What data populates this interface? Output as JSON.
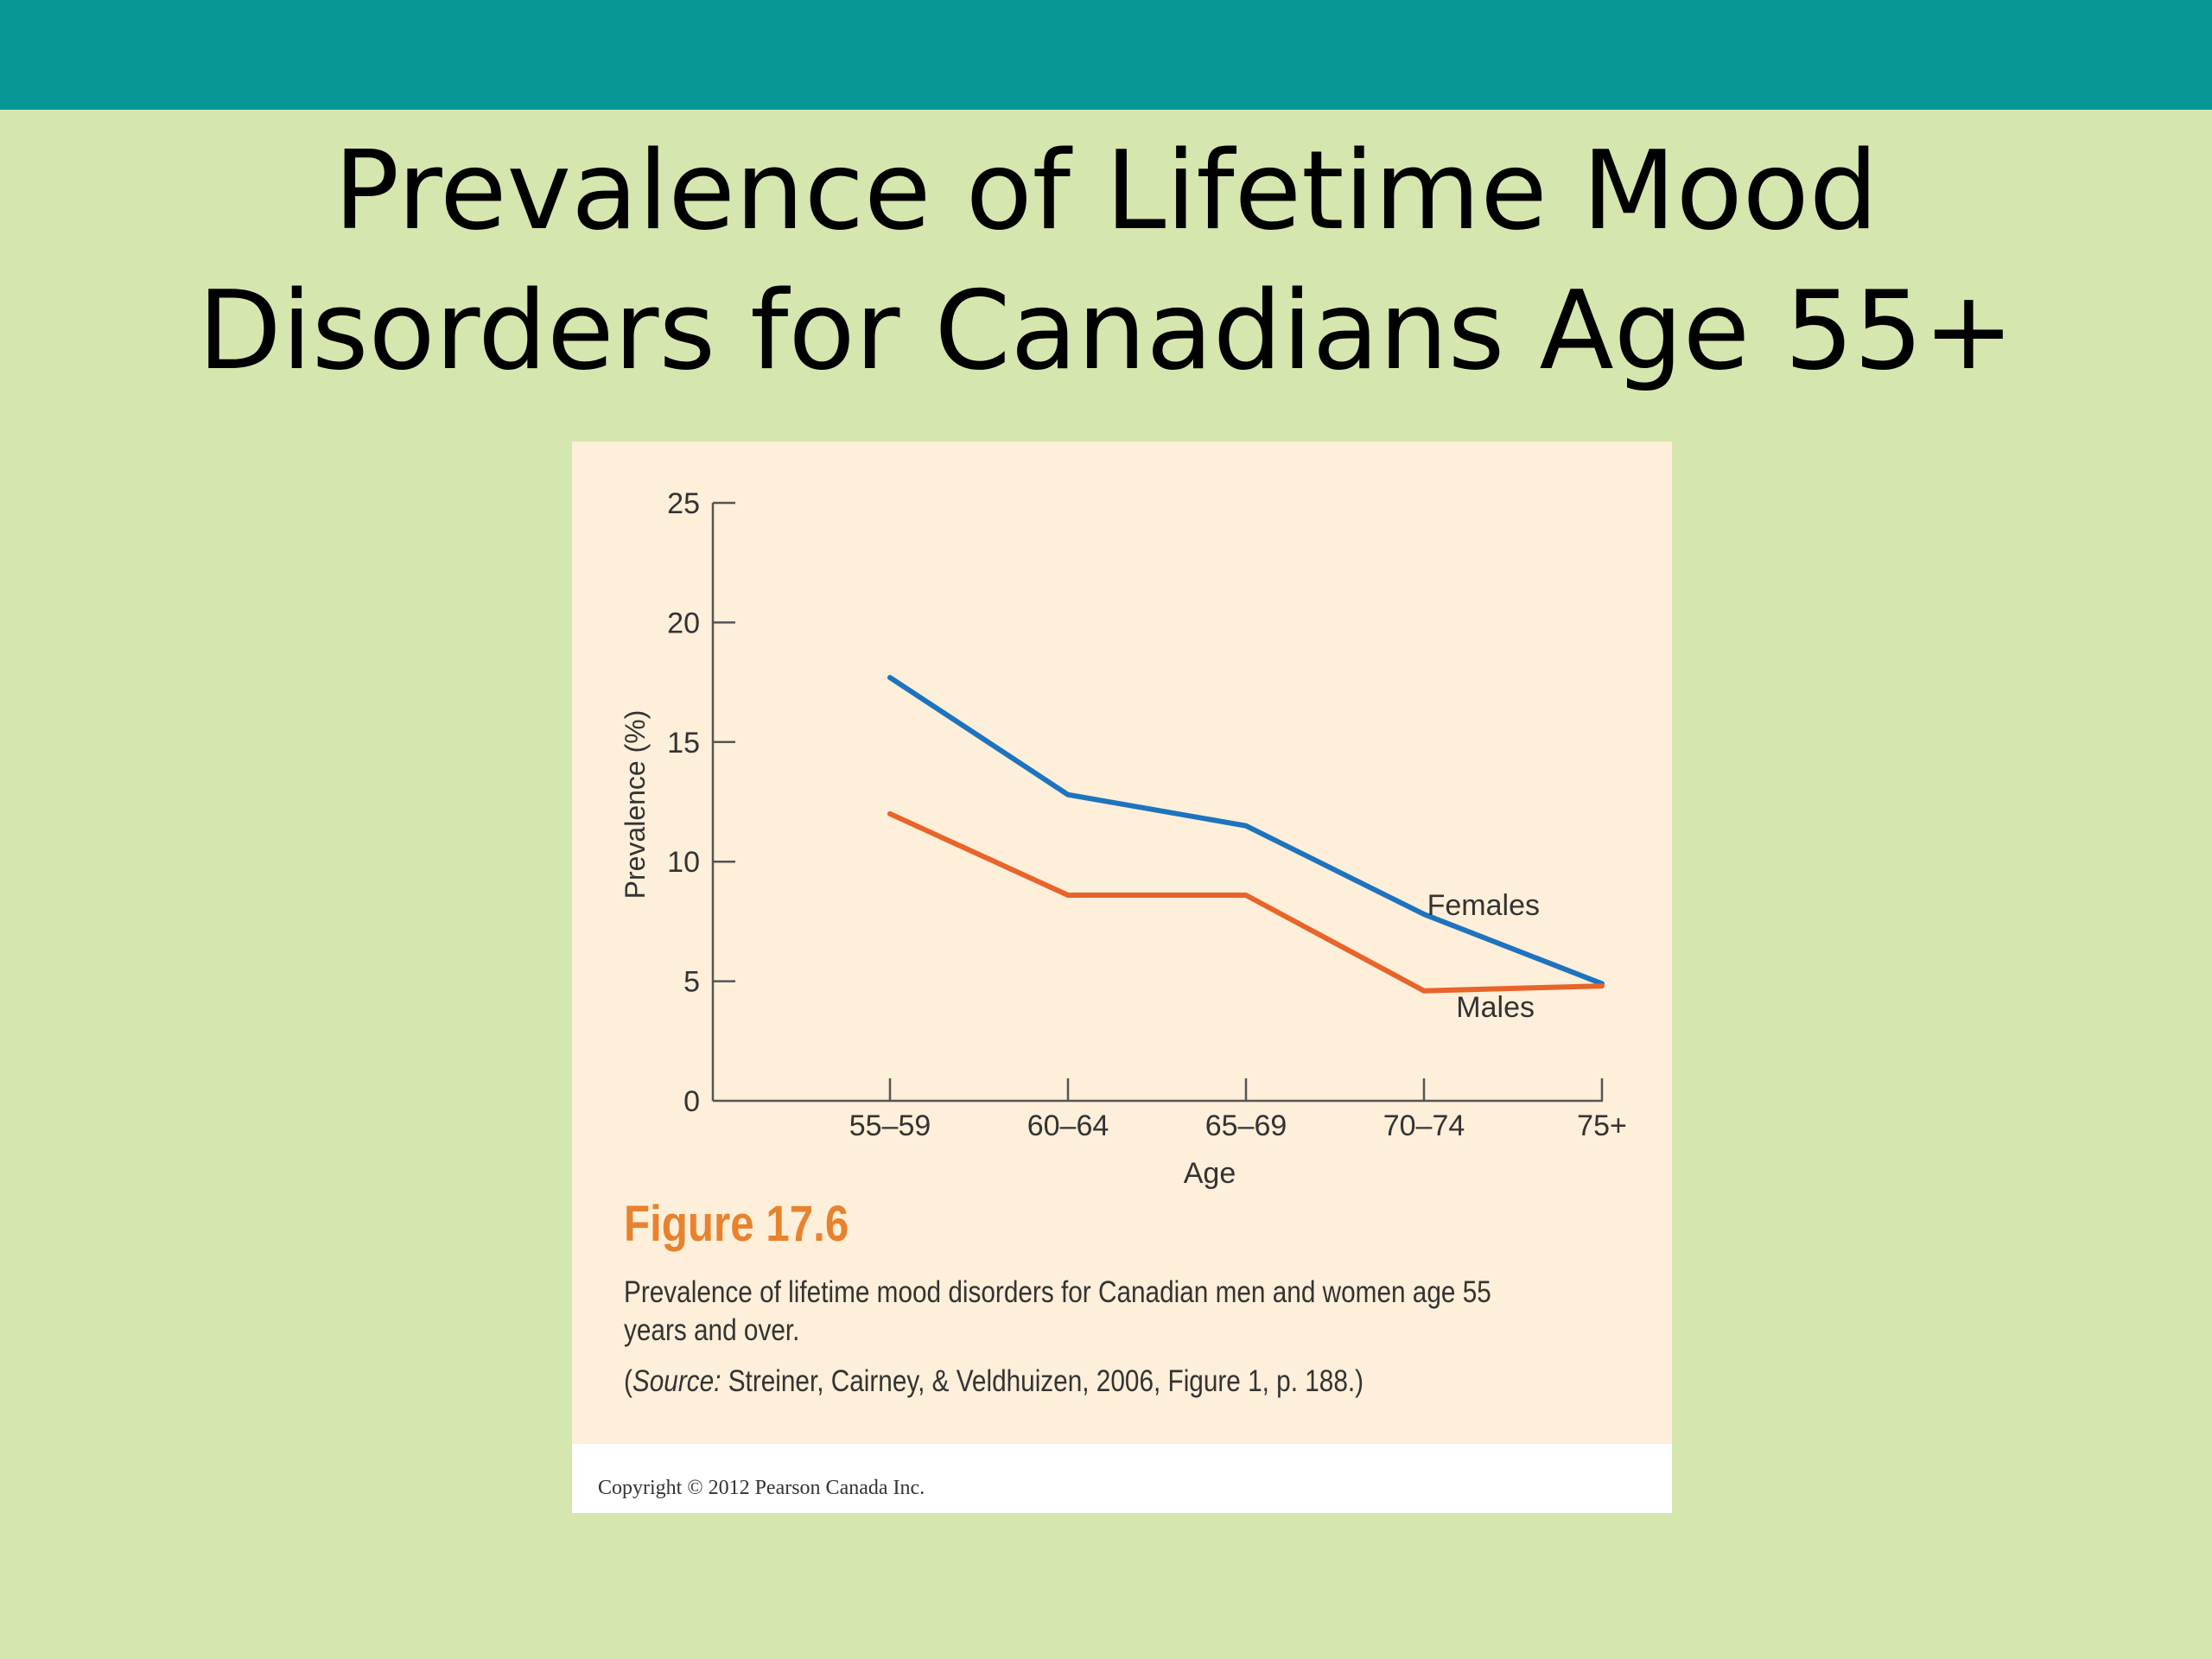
{
  "slide": {
    "title_lines": [
      "Prevalence of Lifetime Mood",
      "Disorders for Canadians Age 55+"
    ],
    "header_bar_color": "#069796",
    "background_color": "#d5e6ae"
  },
  "figure": {
    "label": "Figure 17.6",
    "caption": "Prevalence of lifetime mood disorders for Canadian men and women age 55 years and over.",
    "source_prefix": "(",
    "source_italic": "Source:",
    "source_text": " Streiner, Cairney, & Veldhuizen, 2006, Figure 1, p. 188.)",
    "copyright": "Copyright © 2012 Pearson Canada Inc.",
    "label_color": "#e8822e"
  },
  "chart_data": {
    "type": "line",
    "title": "",
    "xlabel": "Age",
    "ylabel": "Prevalence (%)",
    "categories": [
      "55–59",
      "60–64",
      "65–69",
      "70–74",
      "75+"
    ],
    "ylim": [
      0,
      25
    ],
    "yticks": [
      0,
      5,
      10,
      15,
      20,
      25
    ],
    "grid": false,
    "legend": "inline labels at line ends",
    "series": [
      {
        "name": "Females",
        "color": "#1e73be",
        "values": [
          17.7,
          12.8,
          11.5,
          7.8,
          4.9
        ]
      },
      {
        "name": "Males",
        "color": "#e8642a",
        "values": [
          12.0,
          8.6,
          8.6,
          4.6,
          4.8
        ]
      }
    ]
  }
}
